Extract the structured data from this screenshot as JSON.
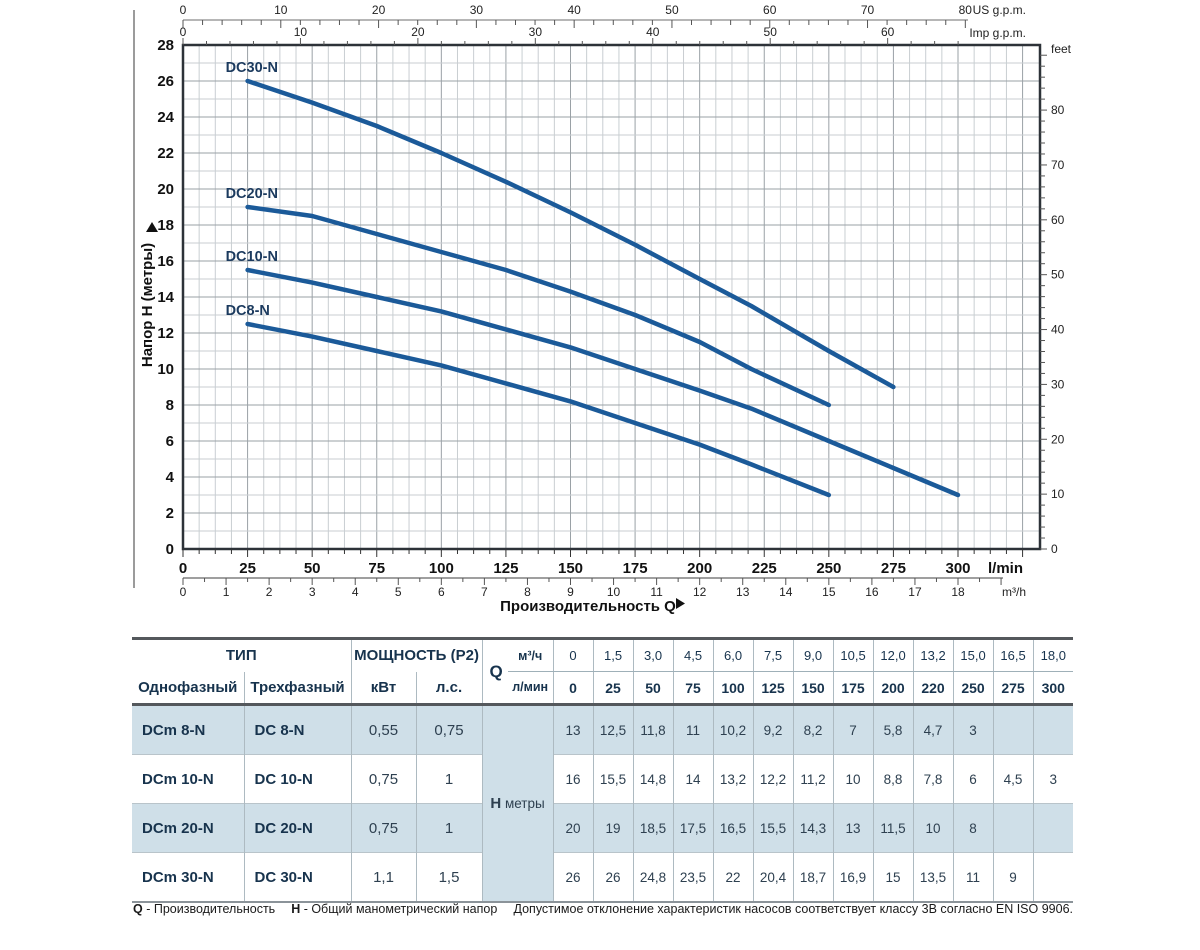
{
  "chart_data": {
    "type": "line",
    "title": "",
    "xlabel": "Производительность Q",
    "ylabel": "Напор H (метры)",
    "grid": "on",
    "x_axis": {
      "unit": "l/min",
      "ticks": [
        0,
        25,
        50,
        75,
        100,
        125,
        150,
        175,
        200,
        225,
        250,
        275,
        300
      ],
      "range": [
        0,
        331
      ]
    },
    "x_axis_secondary": {
      "unit": "m³/h",
      "ticks": [
        0,
        1,
        2,
        3,
        4,
        5,
        6,
        7,
        8,
        9,
        10,
        11,
        12,
        13,
        14,
        15,
        16,
        17,
        18
      ],
      "lmin_per_unit": 16.6667
    },
    "x_axis_top": [
      {
        "unit": "US g.p.m.",
        "labels": [
          0,
          10,
          20,
          30,
          40,
          50,
          60,
          70,
          80
        ],
        "lmin_per_unit": 3.78541
      },
      {
        "unit": "Imp g.p.m.",
        "labels": [
          0,
          10,
          20,
          30,
          40,
          50,
          60
        ],
        "lmin_per_unit": 4.54609
      }
    ],
    "y_axis": {
      "ticks": [
        0,
        2,
        4,
        6,
        8,
        10,
        12,
        14,
        16,
        18,
        20,
        22,
        24,
        26,
        28
      ],
      "range": [
        0,
        28
      ]
    },
    "y_axis_right": {
      "unit": "feet",
      "labels": [
        0,
        10,
        20,
        30,
        40,
        50,
        60,
        70,
        80
      ],
      "m_per_unit": 0.3048
    },
    "series": [
      {
        "name": "DC30-N",
        "x": [
          25,
          50,
          75,
          100,
          125,
          150,
          175,
          200,
          220,
          250,
          275
        ],
        "y": [
          26,
          24.8,
          23.5,
          22,
          20.4,
          18.7,
          16.9,
          15,
          13.5,
          11,
          9
        ]
      },
      {
        "name": "DC20-N",
        "x": [
          25,
          50,
          75,
          100,
          125,
          150,
          175,
          200,
          220,
          250
        ],
        "y": [
          19,
          18.5,
          17.5,
          16.5,
          15.5,
          14.3,
          13,
          11.5,
          10,
          8
        ]
      },
      {
        "name": "DC10-N",
        "x": [
          25,
          50,
          75,
          100,
          125,
          150,
          175,
          200,
          220,
          250,
          275,
          300
        ],
        "y": [
          15.5,
          14.8,
          14,
          13.2,
          12.2,
          11.2,
          10,
          8.8,
          7.8,
          6,
          4.5,
          3
        ]
      },
      {
        "name": "DC8-N",
        "x": [
          25,
          50,
          75,
          100,
          125,
          150,
          175,
          200,
          220,
          250
        ],
        "y": [
          12.5,
          11.8,
          11,
          10.2,
          9.2,
          8.2,
          7,
          5.8,
          4.7,
          3
        ]
      }
    ],
    "colors": {
      "curve": "#1b5a99",
      "curve_label": "#1b3a5e",
      "grid_minor": "#c9ced2",
      "grid_major": "#9aa1a6",
      "border": "#2d3238",
      "axis_text": "#222222",
      "bold_text": "#111111"
    }
  },
  "table": {
    "type_header": "ТИП",
    "power_header": "МОЩНОСТЬ (P2)",
    "col_single": "Однофазный",
    "col_three": "Трехфазный",
    "col_kw": "кВт",
    "col_hp": "л.с.",
    "q_label": "Q",
    "q_unit_m3h": "м³/ч",
    "q_unit_lmin": "л/мин",
    "h_label": "H",
    "h_unit": "метры",
    "q_m3h": [
      "0",
      "1,5",
      "3,0",
      "4,5",
      "6,0",
      "7,5",
      "9,0",
      "10,5",
      "12,0",
      "13,2",
      "15,0",
      "16,5",
      "18,0"
    ],
    "q_lmin": [
      "0",
      "25",
      "50",
      "75",
      "100",
      "125",
      "150",
      "175",
      "200",
      "220",
      "250",
      "275",
      "300"
    ],
    "rows": [
      {
        "single": "DCm 8-N",
        "three": "DC 8-N",
        "kw": "0,55",
        "hp": "0,75",
        "h": [
          "13",
          "12,5",
          "11,8",
          "11",
          "10,2",
          "9,2",
          "8,2",
          "7",
          "5,8",
          "4,7",
          "3",
          "",
          ""
        ]
      },
      {
        "single": "DCm 10-N",
        "three": "DC 10-N",
        "kw": "0,75",
        "hp": "1",
        "h": [
          "16",
          "15,5",
          "14,8",
          "14",
          "13,2",
          "12,2",
          "11,2",
          "10",
          "8,8",
          "7,8",
          "6",
          "4,5",
          "3"
        ]
      },
      {
        "single": "DCm 20-N",
        "three": "DC 20-N",
        "kw": "0,75",
        "hp": "1",
        "h": [
          "20",
          "19",
          "18,5",
          "17,5",
          "16,5",
          "15,5",
          "14,3",
          "13",
          "11,5",
          "10",
          "8",
          "",
          ""
        ]
      },
      {
        "single": "DCm 30-N",
        "three": "DC 30-N",
        "kw": "1,1",
        "hp": "1,5",
        "h": [
          "26",
          "26",
          "24,8",
          "23,5",
          "22",
          "20,4",
          "18,7",
          "16,9",
          "15",
          "13,5",
          "11",
          "9",
          ""
        ]
      }
    ]
  },
  "footer": {
    "q_sym": "Q",
    "q_def": "- Производительность",
    "h_sym": "H",
    "h_def": "- Общий манометрический напор",
    "note": "Допустимое отклонение характеристик насосов соответствует классу 3В согласно EN ISO 9906."
  }
}
